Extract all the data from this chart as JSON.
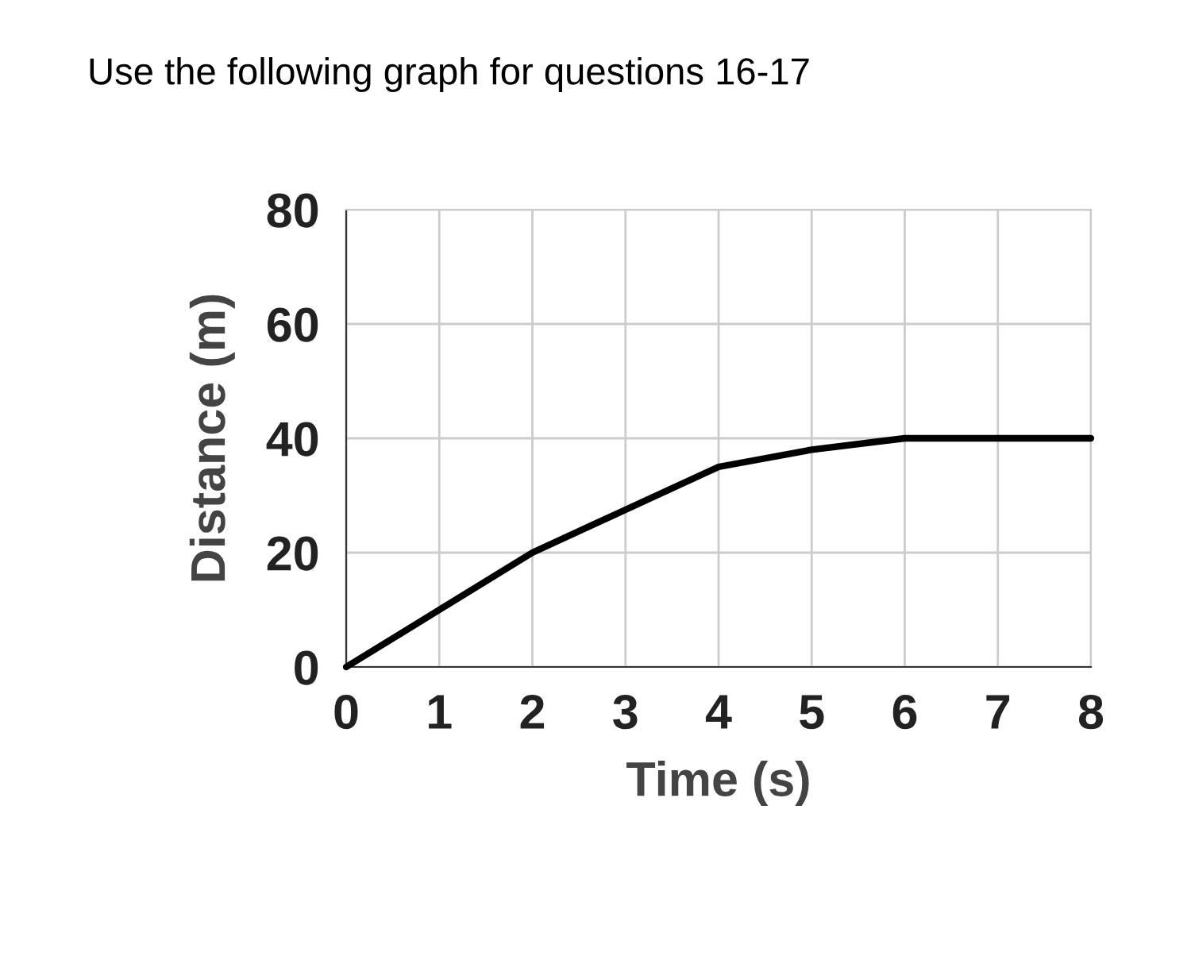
{
  "chart_data": {
    "type": "line",
    "title": "Use the following graph for questions 16-17",
    "xlabel": "Time (s)",
    "ylabel": "Distance (m)",
    "x": [
      0,
      1,
      2,
      3,
      4,
      5,
      6,
      7,
      8
    ],
    "series": [
      {
        "color": "#000000",
        "values": [
          0,
          10,
          20,
          27.5,
          35,
          38,
          40,
          40,
          40
        ]
      }
    ],
    "xlim": [
      0,
      8
    ],
    "ylim": [
      0,
      80
    ],
    "xticks": [
      0,
      1,
      2,
      3,
      4,
      5,
      6,
      7,
      8
    ],
    "yticks": [
      0,
      20,
      40,
      60,
      80
    ],
    "grid": true,
    "marker": "none",
    "line_style": "solid"
  }
}
